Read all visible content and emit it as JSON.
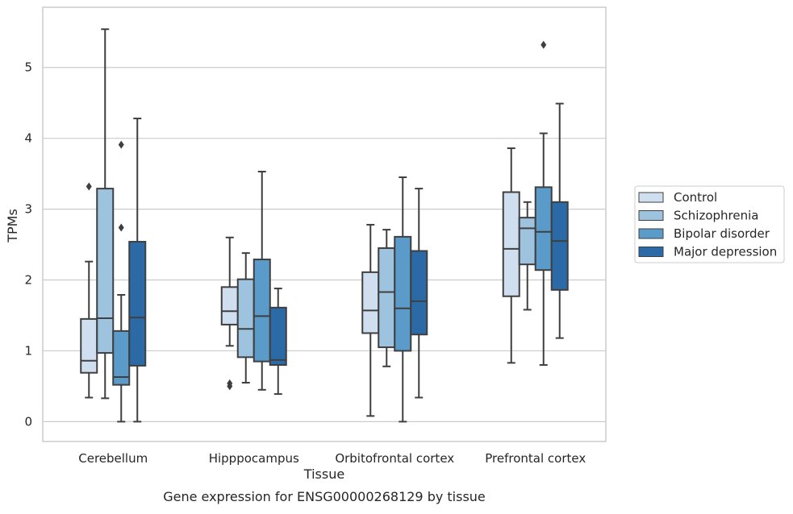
{
  "chart_data": {
    "type": "box",
    "xlabel": "Tissue",
    "ylabel": "TPMs",
    "caption": "Gene expression for ENSG00000268129 by tissue",
    "ylim": [
      -0.28,
      5.85
    ],
    "yticks": [
      0,
      1,
      2,
      3,
      4,
      5
    ],
    "grid": "horizontal",
    "legend_position": "right",
    "categories": [
      "Cerebellum",
      "Hipppocampus",
      "Orbitofrontal cortex",
      "Prefrontal cortex"
    ],
    "series": [
      {
        "name": "Control",
        "color": "#cfdff0",
        "boxes": [
          {
            "whisker_low": 0.34,
            "q1": 0.69,
            "median": 0.86,
            "q3": 1.45,
            "whisker_high": 2.26,
            "outliers": [
              3.32
            ]
          },
          {
            "whisker_low": 1.07,
            "q1": 1.37,
            "median": 1.56,
            "q3": 1.9,
            "whisker_high": 2.6,
            "outliers": [
              0.5,
              0.54
            ]
          },
          {
            "whisker_low": 0.08,
            "q1": 1.25,
            "median": 1.57,
            "q3": 2.11,
            "whisker_high": 2.78,
            "outliers": []
          },
          {
            "whisker_low": 0.83,
            "q1": 1.77,
            "median": 2.44,
            "q3": 3.24,
            "whisker_high": 3.86,
            "outliers": []
          }
        ]
      },
      {
        "name": "Schizophrenia",
        "color": "#9dc3de",
        "boxes": [
          {
            "whisker_low": 0.33,
            "q1": 0.97,
            "median": 1.46,
            "q3": 3.29,
            "whisker_high": 5.54,
            "outliers": []
          },
          {
            "whisker_low": 0.55,
            "q1": 0.91,
            "median": 1.31,
            "q3": 2.01,
            "whisker_high": 2.38,
            "outliers": []
          },
          {
            "whisker_low": 0.78,
            "q1": 1.05,
            "median": 1.83,
            "q3": 2.45,
            "whisker_high": 2.71,
            "outliers": []
          },
          {
            "whisker_low": 1.58,
            "q1": 2.22,
            "median": 2.73,
            "q3": 2.88,
            "whisker_high": 3.1,
            "outliers": []
          }
        ]
      },
      {
        "name": "Bipolar disorder",
        "color": "#5b9bc9",
        "boxes": [
          {
            "whisker_low": 0.0,
            "q1": 0.52,
            "median": 0.63,
            "q3": 1.28,
            "whisker_high": 1.79,
            "outliers": [
              2.74,
              3.91
            ]
          },
          {
            "whisker_low": 0.45,
            "q1": 0.85,
            "median": 1.49,
            "q3": 2.29,
            "whisker_high": 3.53,
            "outliers": []
          },
          {
            "whisker_low": 0.0,
            "q1": 1.0,
            "median": 1.6,
            "q3": 2.61,
            "whisker_high": 3.45,
            "outliers": []
          },
          {
            "whisker_low": 0.8,
            "q1": 2.14,
            "median": 2.68,
            "q3": 3.31,
            "whisker_high": 4.07,
            "outliers": [
              5.32
            ]
          }
        ]
      },
      {
        "name": "Major depression",
        "color": "#2b6aa7",
        "boxes": [
          {
            "whisker_low": 0.0,
            "q1": 0.79,
            "median": 1.47,
            "q3": 2.54,
            "whisker_high": 4.28,
            "outliers": []
          },
          {
            "whisker_low": 0.39,
            "q1": 0.8,
            "median": 0.87,
            "q3": 1.61,
            "whisker_high": 1.88,
            "outliers": []
          },
          {
            "whisker_low": 0.34,
            "q1": 1.23,
            "median": 1.7,
            "q3": 2.41,
            "whisker_high": 3.29,
            "outliers": []
          },
          {
            "whisker_low": 1.18,
            "q1": 1.86,
            "median": 2.55,
            "q3": 3.1,
            "whisker_high": 4.49,
            "outliers": []
          }
        ]
      }
    ]
  }
}
